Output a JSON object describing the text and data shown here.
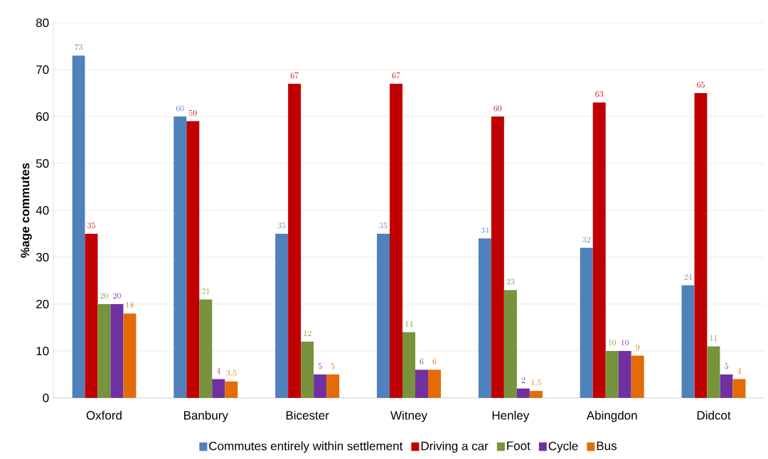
{
  "chart_data": {
    "type": "bar",
    "ylabel": "%age commutes",
    "categories": [
      "Oxford",
      "Banbury",
      "Bicester",
      "Witney",
      "Henley",
      "Abingdon",
      "Didcot"
    ],
    "series": [
      {
        "name": "Commutes entirely within settlement",
        "color": "#4f81bd",
        "values": [
          73,
          60,
          35,
          35,
          34,
          32,
          24
        ]
      },
      {
        "name": "Driving a car",
        "color": "#c00000",
        "values": [
          35,
          59,
          67,
          67,
          60,
          63,
          65
        ]
      },
      {
        "name": "Foot",
        "color": "#77933c",
        "values": [
          20,
          21,
          12,
          14,
          23,
          10,
          11
        ]
      },
      {
        "name": "Cycle",
        "color": "#7030a0",
        "values": [
          20,
          4,
          5,
          6,
          2,
          10,
          5
        ]
      },
      {
        "name": "Bus",
        "color": "#e36c09",
        "values": [
          18,
          3.5,
          5,
          6,
          1.5,
          9,
          4
        ]
      }
    ],
    "ylim": [
      0,
      80
    ],
    "yticks": [
      0,
      10,
      20,
      30,
      40,
      50,
      60,
      70,
      80
    ],
    "grid": "y",
    "legend": "bottom",
    "data_labels": true
  }
}
